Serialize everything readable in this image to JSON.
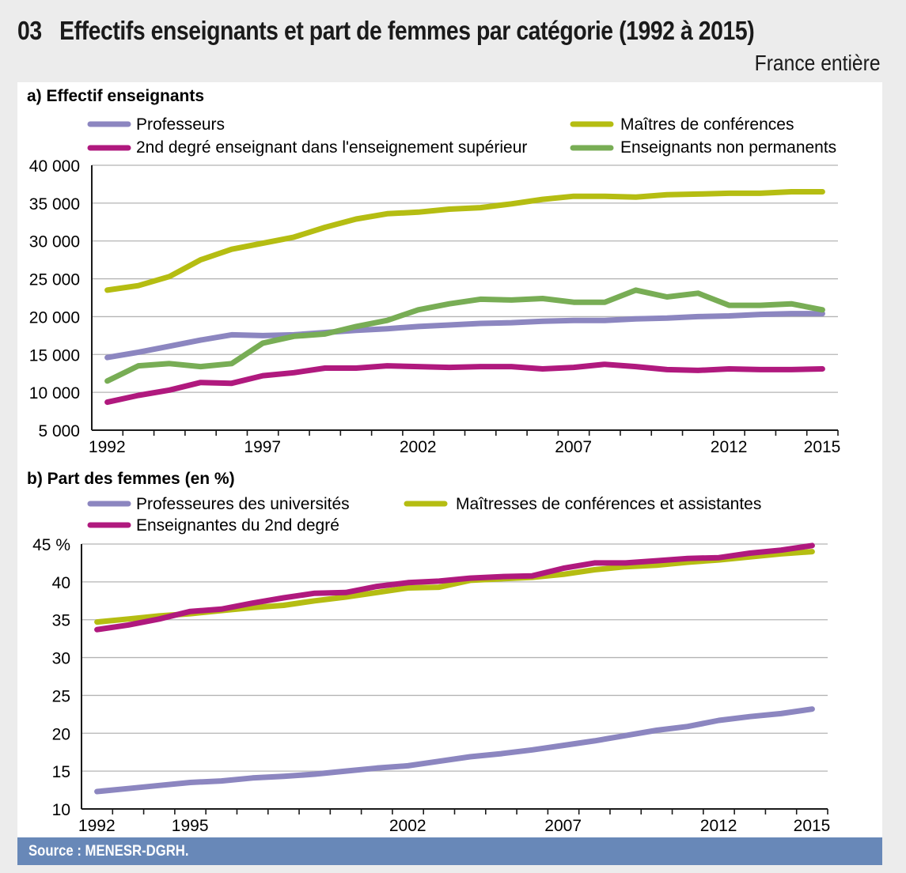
{
  "header": {
    "number": "03",
    "title": "Effectifs enseignants et part de femmes par catégorie (1992 à 2015)",
    "subtitle": "France entière"
  },
  "source": "Source : MENESR-DGRH.",
  "chart_data": [
    {
      "type": "line",
      "title": "a) Effectif enseignants",
      "xlabel": "",
      "ylabel": "",
      "x": [
        1992,
        1993,
        1994,
        1995,
        1996,
        1997,
        1998,
        1999,
        2000,
        2001,
        2002,
        2003,
        2004,
        2005,
        2006,
        2007,
        2008,
        2009,
        2010,
        2011,
        2012,
        2013,
        2014,
        2015
      ],
      "x_tick_labels": [
        "1992",
        "1997",
        "2002",
        "2007",
        "2012",
        "2015"
      ],
      "y_tick_labels": [
        "40 000",
        "35 000",
        "30 000",
        "25 000",
        "20 000",
        "15 000",
        "10 000",
        "5 000"
      ],
      "ylim": [
        5000,
        40000
      ],
      "grid": true,
      "legend_position": "top",
      "series": [
        {
          "name": "Professeurs",
          "color": "#8c86c0",
          "values": [
            14600,
            15300,
            16100,
            16900,
            17600,
            17500,
            17600,
            17900,
            18200,
            18400,
            18700,
            18900,
            19100,
            19200,
            19400,
            19500,
            19500,
            19700,
            19800,
            20000,
            20100,
            20300,
            20400,
            20400
          ]
        },
        {
          "name": "Maîtres de conférences",
          "color": "#b5bd12",
          "values": [
            23500,
            24100,
            25300,
            27500,
            28900,
            29700,
            30500,
            31800,
            32900,
            33600,
            33800,
            34200,
            34400,
            34900,
            35500,
            35900,
            35900,
            35800,
            36100,
            36200,
            36300,
            36300,
            36500,
            36500
          ]
        },
        {
          "name": "2nd degré enseignant dans l'enseignement supérieur",
          "color": "#b0197e",
          "values": [
            8700,
            9600,
            10300,
            11300,
            11200,
            12200,
            12600,
            13200,
            13200,
            13500,
            13400,
            13300,
            13400,
            13400,
            13100,
            13300,
            13700,
            13400,
            13000,
            12900,
            13100,
            13000,
            13000,
            13100
          ]
        },
        {
          "name": "Enseignants non permanents",
          "color": "#78ad55",
          "values": [
            11500,
            13500,
            13800,
            13400,
            13800,
            16500,
            17400,
            17700,
            18700,
            19500,
            20900,
            21700,
            22300,
            22200,
            22400,
            21900,
            21900,
            23500,
            22600,
            23100,
            21500,
            21500,
            21700,
            20900
          ]
        }
      ]
    },
    {
      "type": "line",
      "title": "b) Part des femmes (en %)",
      "xlabel": "",
      "ylabel": "",
      "x": [
        1992,
        1993,
        1994,
        1995,
        1996,
        1997,
        1998,
        1999,
        2000,
        2001,
        2002,
        2003,
        2004,
        2005,
        2006,
        2007,
        2008,
        2009,
        2010,
        2011,
        2012,
        2013,
        2014,
        2015
      ],
      "x_tick_labels": [
        "1992",
        "1995",
        "2002",
        "2007",
        "2012",
        "2015"
      ],
      "y_tick_labels": [
        "45 %",
        "40",
        "35",
        "30",
        "25",
        "20",
        "15",
        "10"
      ],
      "ylim": [
        10,
        45
      ],
      "grid": true,
      "legend_position": "top",
      "series": [
        {
          "name": "Professeures des universités",
          "color": "#8c86c0",
          "values": [
            12.3,
            12.7,
            13.1,
            13.5,
            13.7,
            14.1,
            14.3,
            14.6,
            15.0,
            15.4,
            15.7,
            16.3,
            16.9,
            17.3,
            17.8,
            18.4,
            19.0,
            19.7,
            20.4,
            20.9,
            21.7,
            22.2,
            22.6,
            23.2
          ]
        },
        {
          "name": "Maîtresses de conférences et assistantes",
          "color": "#b5bd12",
          "values": [
            34.7,
            35.1,
            35.5,
            35.8,
            36.2,
            36.6,
            36.9,
            37.5,
            38.0,
            38.6,
            39.2,
            39.3,
            40.2,
            40.4,
            40.6,
            41.0,
            41.6,
            42.0,
            42.2,
            42.6,
            42.9,
            43.3,
            43.7,
            44.0
          ]
        },
        {
          "name": "Enseignantes du 2nd degré",
          "color": "#b0197e",
          "values": [
            33.7,
            34.3,
            35.1,
            36.1,
            36.4,
            37.2,
            37.9,
            38.5,
            38.6,
            39.4,
            39.9,
            40.1,
            40.5,
            40.7,
            40.8,
            41.8,
            42.5,
            42.5,
            42.8,
            43.1,
            43.2,
            43.8,
            44.2,
            44.8
          ]
        }
      ]
    }
  ]
}
